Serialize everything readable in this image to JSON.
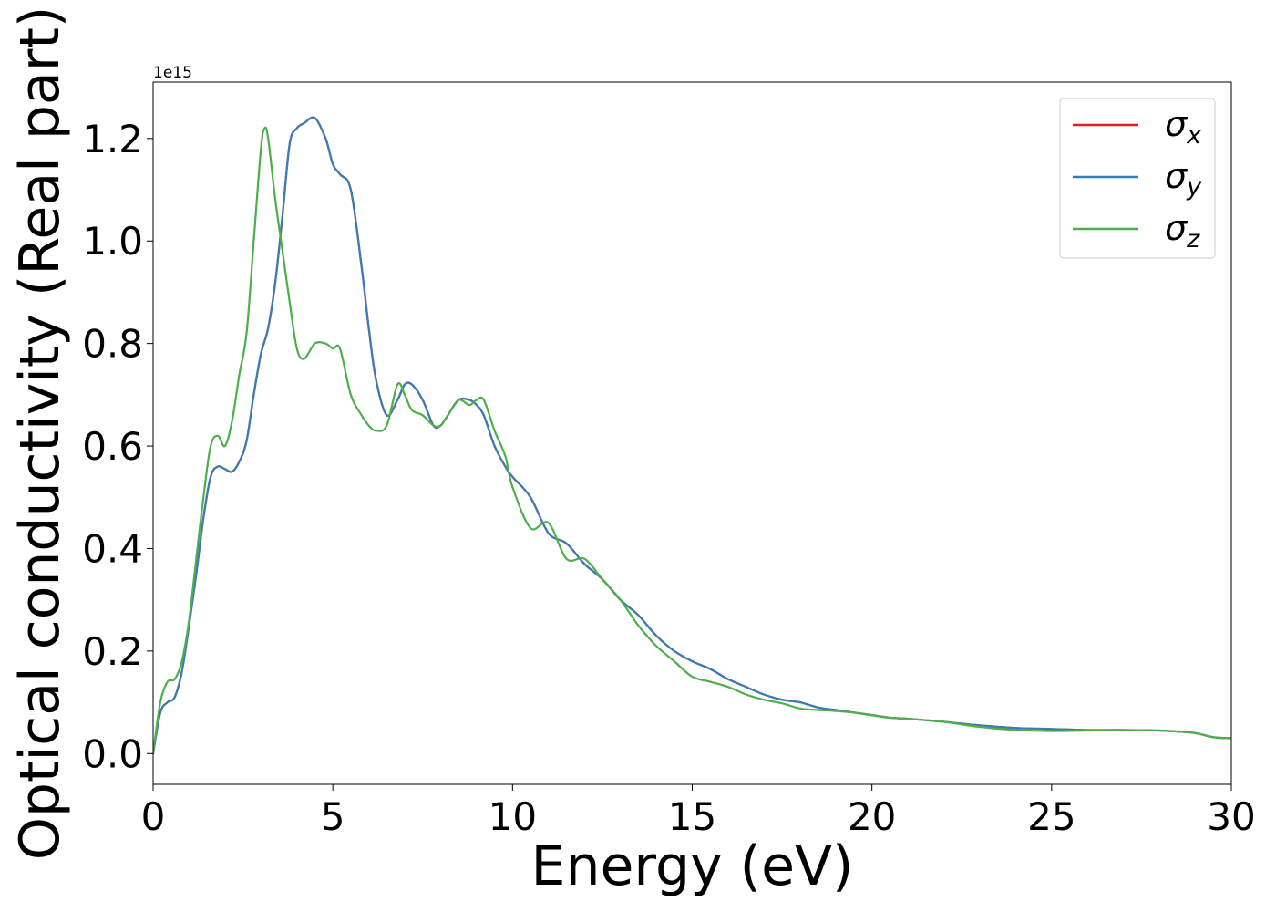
{
  "chart_data": {
    "type": "line",
    "xlabel": "Energy (eV)",
    "ylabel": "Optical conductivity (Real part)",
    "y_offset_text": "1e15",
    "xlim": [
      0,
      30
    ],
    "ylim": [
      -0.06,
      1.31
    ],
    "grid": false,
    "legend_position": "top-right",
    "x_ticks": [
      0,
      5,
      10,
      15,
      20,
      25,
      30
    ],
    "x_tick_labels": [
      "0",
      "5",
      "10",
      "15",
      "20",
      "25",
      "30"
    ],
    "y_ticks": [
      0.0,
      0.2,
      0.4,
      0.6,
      0.8,
      1.0,
      1.2
    ],
    "y_tick_labels": [
      "0.0",
      "0.2",
      "0.4",
      "0.6",
      "0.8",
      "1.0",
      "1.2"
    ],
    "series": [
      {
        "name": "σx",
        "sym": "σ",
        "sub": "x",
        "color": "#e41a1c",
        "x": [
          0,
          0.2,
          0.4,
          0.6,
          0.8,
          1.0,
          1.2,
          1.4,
          1.6,
          1.8,
          2.0,
          2.2,
          2.4,
          2.6,
          2.8,
          3.0,
          3.2,
          3.4,
          3.6,
          3.8,
          4.0,
          4.2,
          4.5,
          4.8,
          5.0,
          5.2,
          5.5,
          5.8,
          6.0,
          6.2,
          6.5,
          6.8,
          7.0,
          7.2,
          7.5,
          7.8,
          8.0,
          8.2,
          8.5,
          8.8,
          9.0,
          9.2,
          9.5,
          9.8,
          10.0,
          10.5,
          11.0,
          11.5,
          12.0,
          12.5,
          13.0,
          13.5,
          14.0,
          14.5,
          15.0,
          15.5,
          16.0,
          16.5,
          17.0,
          17.5,
          18.0,
          18.5,
          19.0,
          19.5,
          20.0,
          20.5,
          21.0,
          22.0,
          23.0,
          24.0,
          25.0,
          26.0,
          27.0,
          28.0,
          28.5,
          29.0,
          29.5,
          30.0
        ],
        "y": [
          0.0,
          0.08,
          0.1,
          0.11,
          0.16,
          0.25,
          0.35,
          0.46,
          0.54,
          0.56,
          0.555,
          0.55,
          0.57,
          0.61,
          0.7,
          0.78,
          0.83,
          0.92,
          1.05,
          1.19,
          1.22,
          1.23,
          1.24,
          1.2,
          1.15,
          1.13,
          1.1,
          0.95,
          0.83,
          0.73,
          0.66,
          0.69,
          0.72,
          0.72,
          0.69,
          0.64,
          0.64,
          0.66,
          0.69,
          0.69,
          0.68,
          0.66,
          0.6,
          0.56,
          0.54,
          0.5,
          0.43,
          0.41,
          0.37,
          0.34,
          0.3,
          0.27,
          0.23,
          0.2,
          0.18,
          0.165,
          0.145,
          0.13,
          0.115,
          0.105,
          0.1,
          0.09,
          0.085,
          0.08,
          0.075,
          0.07,
          0.068,
          0.062,
          0.055,
          0.05,
          0.048,
          0.046,
          0.046,
          0.045,
          0.043,
          0.04,
          0.032,
          0.03
        ]
      },
      {
        "name": "σy",
        "sym": "σ",
        "sub": "y",
        "color": "#377eb8",
        "x": [
          0,
          0.2,
          0.4,
          0.6,
          0.8,
          1.0,
          1.2,
          1.4,
          1.6,
          1.8,
          2.0,
          2.2,
          2.4,
          2.6,
          2.8,
          3.0,
          3.2,
          3.4,
          3.6,
          3.8,
          4.0,
          4.2,
          4.5,
          4.8,
          5.0,
          5.2,
          5.5,
          5.8,
          6.0,
          6.2,
          6.5,
          6.8,
          7.0,
          7.2,
          7.5,
          7.8,
          8.0,
          8.2,
          8.5,
          8.8,
          9.0,
          9.2,
          9.5,
          9.8,
          10.0,
          10.5,
          11.0,
          11.5,
          12.0,
          12.5,
          13.0,
          13.5,
          14.0,
          14.5,
          15.0,
          15.5,
          16.0,
          16.5,
          17.0,
          17.5,
          18.0,
          18.5,
          19.0,
          19.5,
          20.0,
          20.5,
          21.0,
          22.0,
          23.0,
          24.0,
          25.0,
          26.0,
          27.0,
          28.0,
          28.5,
          29.0,
          29.5,
          30.0
        ],
        "y": [
          0.0,
          0.08,
          0.1,
          0.11,
          0.16,
          0.25,
          0.35,
          0.46,
          0.54,
          0.56,
          0.555,
          0.55,
          0.57,
          0.61,
          0.7,
          0.78,
          0.83,
          0.92,
          1.05,
          1.19,
          1.22,
          1.23,
          1.24,
          1.2,
          1.15,
          1.13,
          1.1,
          0.95,
          0.83,
          0.73,
          0.66,
          0.69,
          0.72,
          0.72,
          0.69,
          0.64,
          0.64,
          0.66,
          0.69,
          0.69,
          0.68,
          0.66,
          0.6,
          0.56,
          0.54,
          0.5,
          0.43,
          0.41,
          0.37,
          0.34,
          0.3,
          0.27,
          0.23,
          0.2,
          0.18,
          0.165,
          0.145,
          0.13,
          0.115,
          0.105,
          0.1,
          0.09,
          0.085,
          0.08,
          0.075,
          0.07,
          0.068,
          0.062,
          0.055,
          0.05,
          0.048,
          0.046,
          0.046,
          0.045,
          0.043,
          0.04,
          0.032,
          0.03
        ]
      },
      {
        "name": "σz",
        "sym": "σ",
        "sub": "z",
        "color": "#4daf4a",
        "x": [
          0,
          0.2,
          0.4,
          0.6,
          0.8,
          1.0,
          1.2,
          1.4,
          1.6,
          1.8,
          2.0,
          2.2,
          2.4,
          2.6,
          2.8,
          3.0,
          3.1,
          3.2,
          3.4,
          3.6,
          3.8,
          4.0,
          4.2,
          4.5,
          4.8,
          5.0,
          5.2,
          5.5,
          5.8,
          6.0,
          6.2,
          6.5,
          6.8,
          7.0,
          7.2,
          7.5,
          7.8,
          8.0,
          8.2,
          8.5,
          8.8,
          9.0,
          9.2,
          9.5,
          9.8,
          10.0,
          10.5,
          11.0,
          11.5,
          12.0,
          12.5,
          13.0,
          13.5,
          14.0,
          14.5,
          15.0,
          15.5,
          16.0,
          16.5,
          17.0,
          17.5,
          18.0,
          18.5,
          19.0,
          19.5,
          20.0,
          20.5,
          21.0,
          22.0,
          23.0,
          24.0,
          25.0,
          26.0,
          27.0,
          28.0,
          28.5,
          29.0,
          29.5,
          30.0
        ],
        "y": [
          0.0,
          0.1,
          0.14,
          0.145,
          0.18,
          0.26,
          0.38,
          0.5,
          0.6,
          0.62,
          0.6,
          0.65,
          0.74,
          0.82,
          1.0,
          1.18,
          1.22,
          1.2,
          1.08,
          0.98,
          0.88,
          0.79,
          0.77,
          0.8,
          0.8,
          0.79,
          0.79,
          0.7,
          0.66,
          0.64,
          0.63,
          0.64,
          0.72,
          0.7,
          0.67,
          0.66,
          0.64,
          0.64,
          0.66,
          0.69,
          0.68,
          0.69,
          0.69,
          0.63,
          0.58,
          0.52,
          0.44,
          0.45,
          0.38,
          0.38,
          0.34,
          0.3,
          0.25,
          0.21,
          0.18,
          0.15,
          0.14,
          0.13,
          0.115,
          0.105,
          0.098,
          0.088,
          0.085,
          0.083,
          0.08,
          0.075,
          0.07,
          0.068,
          0.062,
          0.052,
          0.046,
          0.044,
          0.045,
          0.046,
          0.045,
          0.043,
          0.04,
          0.032,
          0.03
        ]
      }
    ]
  }
}
